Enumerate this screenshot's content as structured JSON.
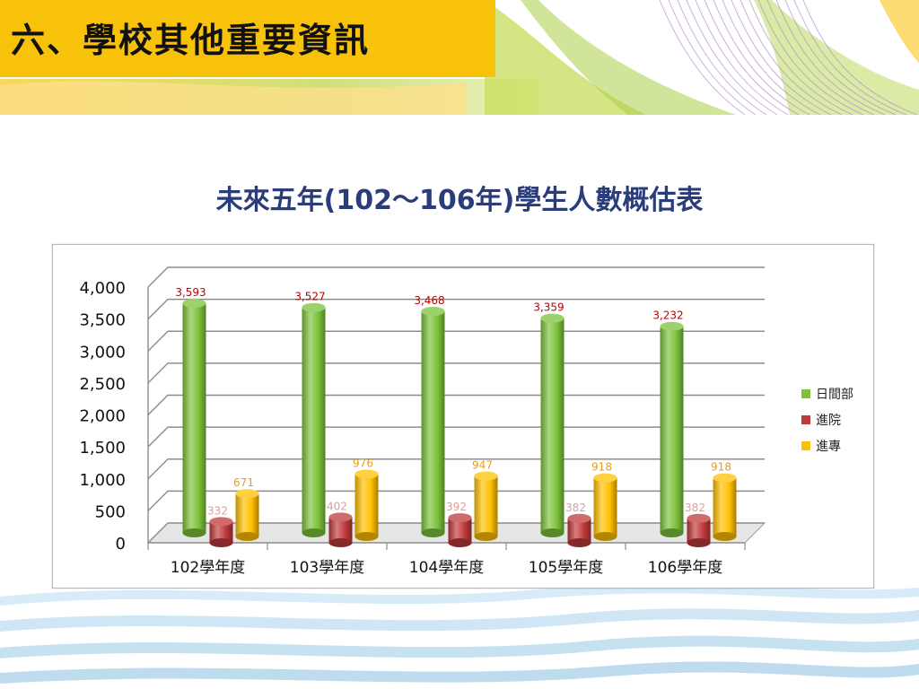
{
  "page": {
    "heading": "六、學校其他重要資訊"
  },
  "colors": {
    "banner_yellow": "#f9c20a",
    "title_blue": "#2a3d7a"
  },
  "chart_data": {
    "type": "bar",
    "title": "未來五年(102～106年)學生人數概估表",
    "categories": [
      "102學年度",
      "103學年度",
      "104學年度",
      "105學年度",
      "106學年度"
    ],
    "series": [
      {
        "name": "日間部",
        "color": "#7cc23a",
        "label_color": "#c00000",
        "values": [
          3593,
          3527,
          3468,
          3359,
          3232
        ],
        "labels": [
          "3,593",
          "3,527",
          "3,468",
          "3,359",
          "3,232"
        ]
      },
      {
        "name": "進院",
        "color": "#c0393a",
        "label_color": "#d9a0a0",
        "values": [
          332,
          402,
          392,
          382,
          382
        ],
        "labels": [
          "332",
          "402",
          "392",
          "382",
          "382"
        ]
      },
      {
        "name": "進專",
        "color": "#ffc000",
        "label_color": "#e3a020",
        "values": [
          671,
          976,
          947,
          918,
          918
        ],
        "labels": [
          "671",
          "976",
          "947",
          "918",
          "918"
        ]
      }
    ],
    "ylim": [
      0,
      4000
    ],
    "yticks": [
      0,
      500,
      1000,
      1500,
      2000,
      2500,
      3000,
      3500,
      4000
    ],
    "ytick_labels": [
      "0",
      "500",
      "1,000",
      "1,500",
      "2,000",
      "2,500",
      "3,000",
      "3,500",
      "4,000"
    ],
    "grid": true,
    "legend_position": "right"
  }
}
